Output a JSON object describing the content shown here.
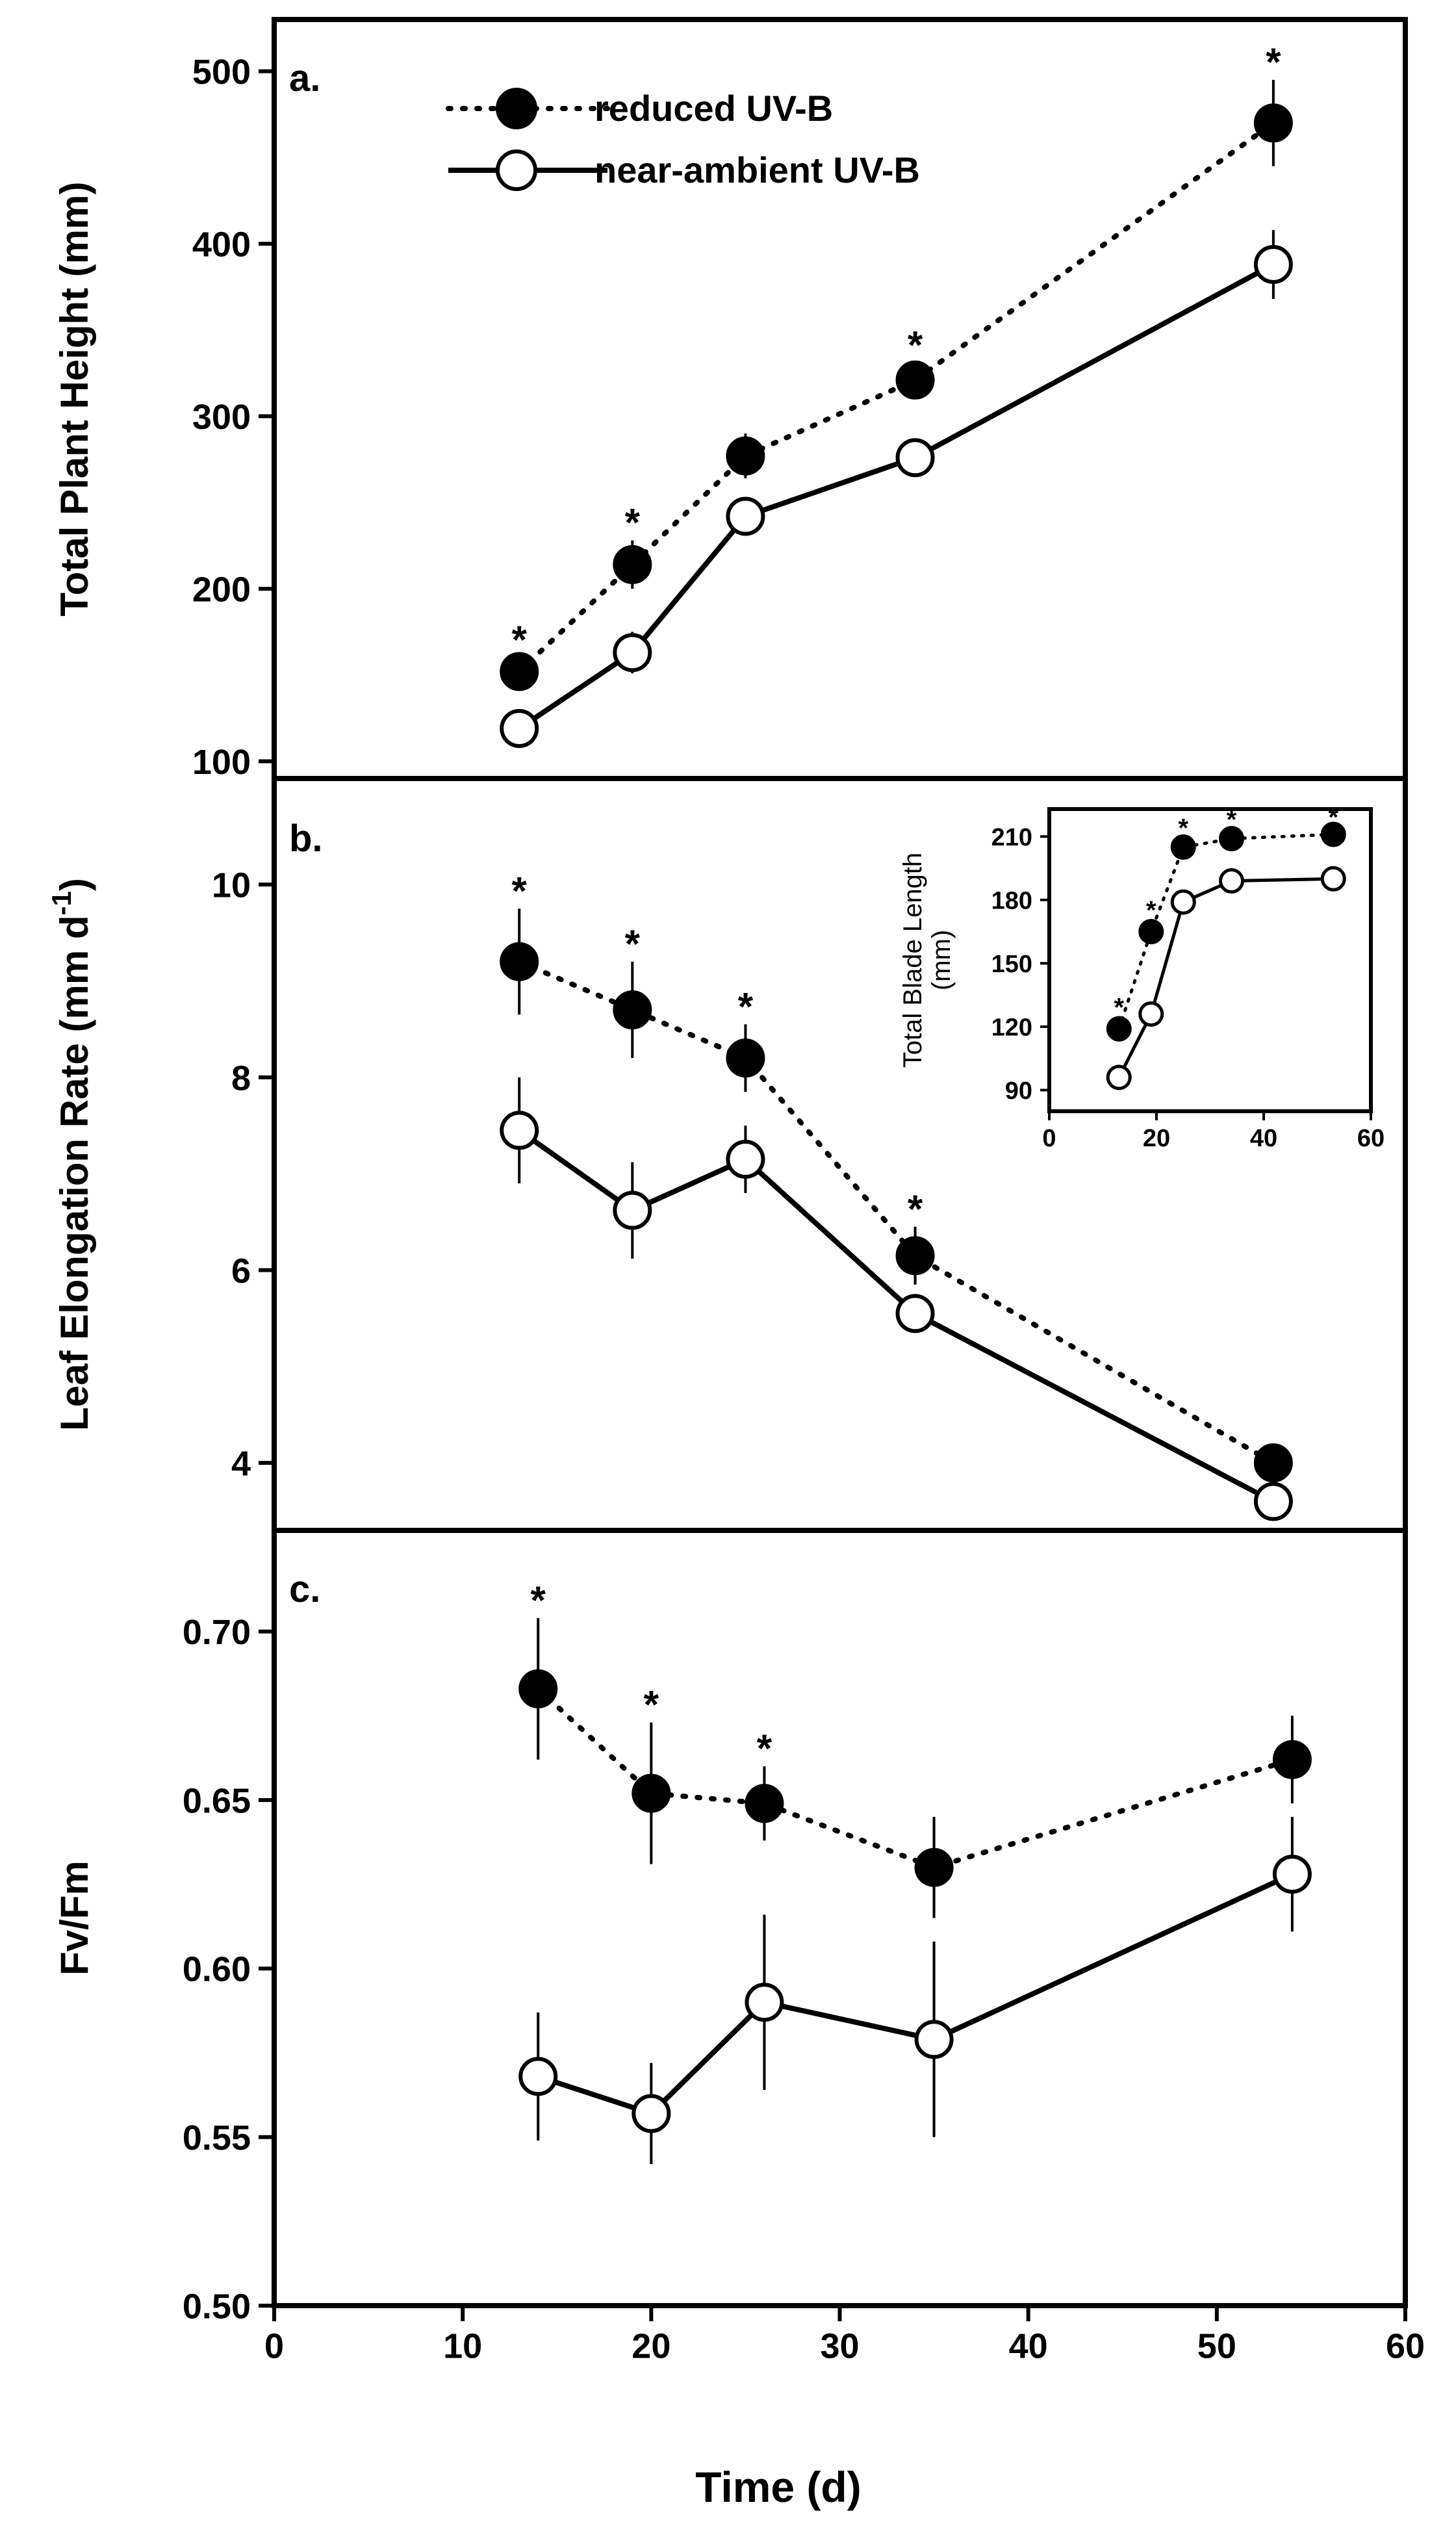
{
  "colors": {
    "ink": "#000000",
    "paper": "#ffffff"
  },
  "legend": {
    "placement": "top-left of panel a",
    "entries": [
      {
        "label": "reduced UV-B",
        "marker": "filled-circle",
        "line": "dotted"
      },
      {
        "label": "near-ambient UV-B",
        "marker": "open-circle",
        "line": "solid"
      }
    ]
  },
  "shared_x": {
    "label": "Time (d)",
    "range": [
      0,
      60
    ],
    "ticks": [
      0,
      10,
      20,
      30,
      40,
      50,
      60
    ],
    "tick_labels": [
      "0",
      "10",
      "20",
      "30",
      "40",
      "50",
      "60"
    ]
  },
  "chart_data": [
    {
      "id": "a",
      "type": "line",
      "panel_label": "a.",
      "ylabel": "Total Plant Height (mm)",
      "ylim": [
        90,
        530
      ],
      "yticks": [
        100,
        200,
        300,
        400,
        500
      ],
      "ytick_labels": [
        "100",
        "200",
        "300",
        "400",
        "500"
      ],
      "xlim": [
        0,
        60
      ],
      "series": [
        {
          "name": "reduced UV-B",
          "x": [
            13,
            19,
            25,
            34,
            53
          ],
          "y": [
            152,
            214,
            277,
            321,
            470
          ],
          "err": [
            8,
            14,
            13,
            10,
            25
          ],
          "sig": [
            "*",
            "*",
            "",
            "*",
            "*"
          ]
        },
        {
          "name": "near-ambient UV-B",
          "x": [
            13,
            19,
            25,
            34,
            53
          ],
          "y": [
            119,
            163,
            242,
            276,
            388
          ],
          "err": [
            6,
            12,
            10,
            10,
            20
          ],
          "sig": [
            "",
            "",
            "",
            "",
            ""
          ]
        }
      ]
    },
    {
      "id": "b",
      "type": "line",
      "panel_label": "b.",
      "ylabel": "Leaf Elongation Rate (mm d",
      "ylabel_sup": "-1",
      "ylabel_close": ")",
      "ylim": [
        3.3,
        11.1
      ],
      "yticks": [
        4,
        6,
        8,
        10
      ],
      "ytick_labels": [
        "4",
        "6",
        "8",
        "10"
      ],
      "xlim": [
        0,
        60
      ],
      "series": [
        {
          "name": "reduced UV-B",
          "x": [
            13,
            19,
            25,
            34,
            53
          ],
          "y": [
            9.2,
            8.7,
            8.2,
            6.15,
            4.0
          ],
          "err": [
            0.55,
            0.5,
            0.35,
            0.3,
            0.0
          ],
          "sig": [
            "*",
            "*",
            "*",
            "*",
            ""
          ]
        },
        {
          "name": "near-ambient UV-B",
          "x": [
            13,
            19,
            25,
            34,
            53
          ],
          "y": [
            7.45,
            6.62,
            7.15,
            5.55,
            3.6
          ],
          "err": [
            0.55,
            0.5,
            0.35,
            0.2,
            0.0
          ],
          "sig": [
            "",
            "",
            "",
            "",
            ""
          ]
        }
      ]
    },
    {
      "id": "b-inset",
      "type": "line",
      "ylabel": "Total Blade Length",
      "ylabel_unit": "(mm)",
      "ylim": [
        80,
        223
      ],
      "yticks": [
        90,
        120,
        150,
        180,
        210
      ],
      "ytick_labels": [
        "90",
        "120",
        "150",
        "180",
        "210"
      ],
      "xlim": [
        0,
        60
      ],
      "xticks": [
        0,
        20,
        40,
        60
      ],
      "xtick_labels": [
        "0",
        "20",
        "40",
        "60"
      ],
      "series": [
        {
          "name": "reduced UV-B",
          "x": [
            13,
            19,
            25,
            34,
            53
          ],
          "y": [
            119,
            165,
            205,
            209,
            211
          ],
          "err": [
            6,
            6,
            5,
            5,
            4
          ],
          "sig": [
            "*",
            "*",
            "*",
            "*",
            "*"
          ]
        },
        {
          "name": "near-ambient UV-B",
          "x": [
            13,
            19,
            25,
            34,
            53
          ],
          "y": [
            96,
            126,
            179,
            189,
            190
          ],
          "err": [
            6,
            6,
            5,
            5,
            4
          ],
          "sig": [
            "",
            "",
            "",
            "",
            ""
          ]
        }
      ]
    },
    {
      "id": "c",
      "type": "line",
      "panel_label": "c.",
      "ylabel": "Fv/Fm",
      "ylim": [
        0.5,
        0.73
      ],
      "yticks": [
        0.5,
        0.55,
        0.6,
        0.65,
        0.7
      ],
      "ytick_labels": [
        "0.50",
        "0.55",
        "0.60",
        "0.65",
        "0.70"
      ],
      "xlim": [
        0,
        60
      ],
      "xticks": [
        0,
        10,
        20,
        30,
        40,
        50,
        60
      ],
      "xtick_labels": [
        "0",
        "10",
        "20",
        "30",
        "40",
        "50",
        "60"
      ],
      "xlabel": "Time (d)",
      "series": [
        {
          "name": "reduced UV-B",
          "x": [
            14,
            20,
            26,
            35,
            54
          ],
          "y": [
            0.683,
            0.652,
            0.649,
            0.63,
            0.662
          ],
          "err": [
            0.021,
            0.021,
            0.011,
            0.015,
            0.013
          ],
          "sig": [
            "*",
            "*",
            "*",
            "",
            ""
          ]
        },
        {
          "name": "near-ambient UV-B",
          "x": [
            14,
            20,
            26,
            35,
            54
          ],
          "y": [
            0.568,
            0.557,
            0.59,
            0.579,
            0.628
          ],
          "err": [
            0.019,
            0.015,
            0.026,
            0.029,
            0.017
          ],
          "sig": [
            "",
            "",
            "",
            "",
            ""
          ]
        }
      ]
    }
  ]
}
